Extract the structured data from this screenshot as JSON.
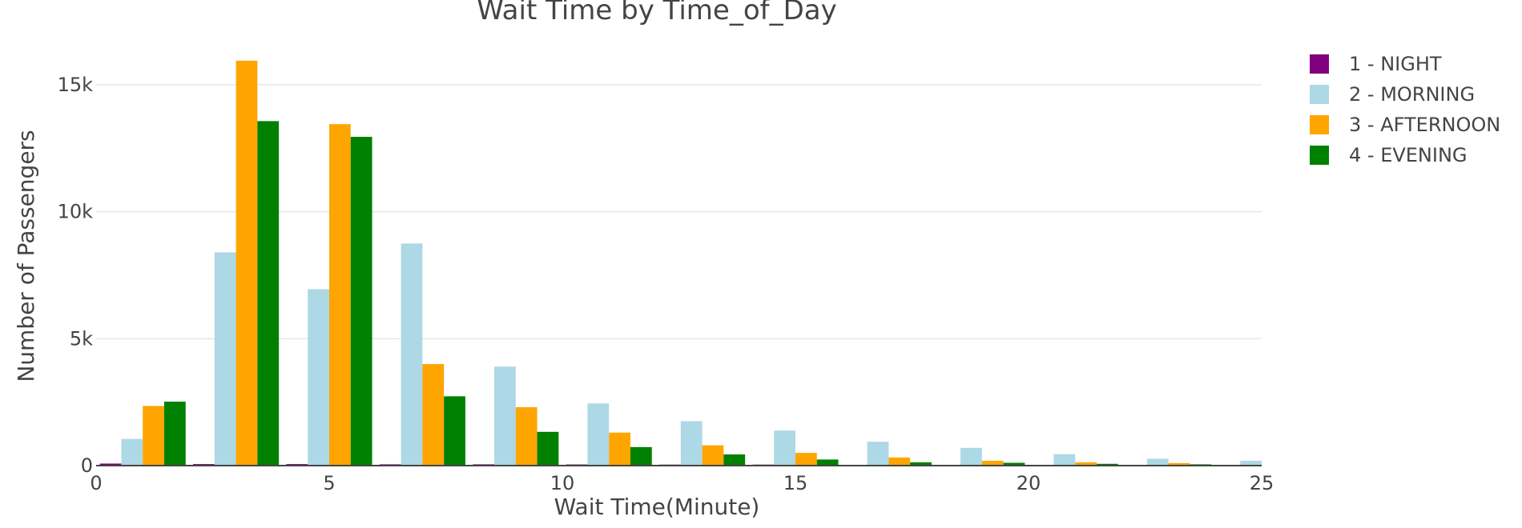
{
  "chart_data": {
    "type": "bar",
    "title": "Wait Time by Time_of_Day",
    "xlabel": "Wait Time(Minute)",
    "ylabel": "Number of Passengers",
    "xlim": [
      0,
      25
    ],
    "ylim": [
      0,
      16500
    ],
    "x_ticks": [
      0,
      5,
      10,
      15,
      20,
      25
    ],
    "y_ticks": [
      {
        "value": 0,
        "label": "0"
      },
      {
        "value": 5000,
        "label": "5k"
      },
      {
        "value": 10000,
        "label": "10k"
      },
      {
        "value": 15000,
        "label": "15k"
      }
    ],
    "x": [
      1,
      3,
      5,
      7,
      9,
      11,
      13,
      15,
      17,
      19,
      21,
      23,
      25
    ],
    "bin_width": 2,
    "grid": true,
    "legend_position": "top-right",
    "series": [
      {
        "name": "1 - NIGHT",
        "color": "#800080",
        "values": [
          80,
          60,
          60,
          50,
          50,
          45,
          40,
          40,
          30,
          25,
          20,
          15,
          10
        ]
      },
      {
        "name": "2 - MORNING",
        "color": "#add8e6",
        "values": [
          1050,
          8400,
          6950,
          8750,
          3900,
          2450,
          1750,
          1380,
          940,
          700,
          450,
          270,
          190
        ]
      },
      {
        "name": "3 - AFTERNOON",
        "color": "#ffa500",
        "values": [
          2350,
          15950,
          13450,
          4000,
          2300,
          1300,
          800,
          500,
          320,
          190,
          130,
          100,
          70
        ]
      },
      {
        "name": "4 - EVENING",
        "color": "#008000",
        "values": [
          2520,
          13570,
          12950,
          2730,
          1330,
          730,
          440,
          240,
          130,
          110,
          70,
          50,
          20
        ]
      }
    ]
  }
}
